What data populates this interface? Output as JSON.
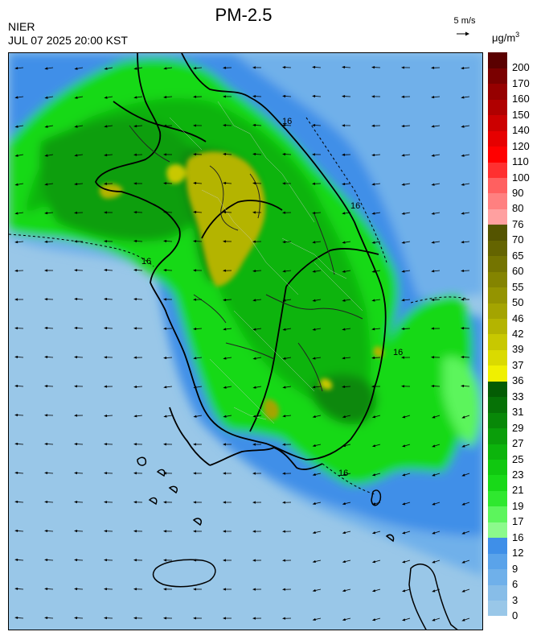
{
  "header": {
    "title": "PM-2.5",
    "agency": "NIER",
    "timestamp": "JUL 07 2025 20:00 KST",
    "wind_reference": "5 m/s",
    "unit_base": "μg/m",
    "unit_exp": "3"
  },
  "contour_label": "16",
  "legend": {
    "labels": [
      "0",
      "3",
      "6",
      "9",
      "12",
      "16",
      "17",
      "19",
      "21",
      "23",
      "25",
      "27",
      "29",
      "31",
      "33",
      "36",
      "37",
      "39",
      "42",
      "46",
      "50",
      "55",
      "60",
      "65",
      "70",
      "76",
      "80",
      "90",
      "100",
      "110",
      "120",
      "140",
      "150",
      "160",
      "170",
      "200"
    ],
    "colors": [
      "#99c7e8",
      "#87bde8",
      "#6fb0ea",
      "#5aa3ea",
      "#3f8fe8",
      "#8cfa8c",
      "#5cf55c",
      "#2fe82f",
      "#18d918",
      "#10c810",
      "#0cb40c",
      "#0a9e0a",
      "#088808",
      "#067206",
      "#045c04",
      "#f0f000",
      "#dada00",
      "#c8c800",
      "#b4b400",
      "#a4a400",
      "#949400",
      "#848400",
      "#747400",
      "#646400",
      "#545400",
      "#ffa0a0",
      "#ff8080",
      "#ff6060",
      "#ff3030",
      "#ff0000",
      "#e60000",
      "#cc0000",
      "#b00000",
      "#960000",
      "#7a0000",
      "#5a0000"
    ]
  }
}
